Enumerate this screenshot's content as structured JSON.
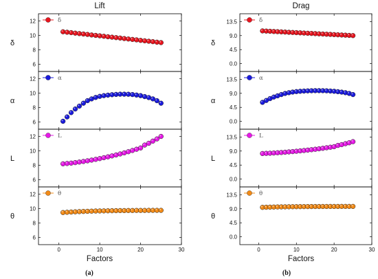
{
  "chart_data": [
    {
      "type": "scatter",
      "title": "Lift",
      "caption": "(a)",
      "xlabel": "Factors",
      "xlim": [
        -5,
        30
      ],
      "xticks": [
        "0",
        "10",
        "20",
        "30"
      ],
      "x": [
        1,
        2,
        3,
        4,
        5,
        6,
        7,
        8,
        9,
        10,
        11,
        12,
        13,
        14,
        15,
        16,
        17,
        18,
        19,
        20,
        21,
        22,
        23,
        24,
        25
      ],
      "panels": [
        {
          "ylabel": "δ",
          "legend": "δ",
          "color": "#e8141e",
          "ylim": [
            5,
            13
          ],
          "yticks": [
            6,
            8,
            10,
            12
          ],
          "values": [
            10.5,
            10.44,
            10.38,
            10.31,
            10.25,
            10.19,
            10.13,
            10.06,
            10.0,
            9.94,
            9.88,
            9.81,
            9.75,
            9.69,
            9.63,
            9.56,
            9.5,
            9.44,
            9.38,
            9.31,
            9.25,
            9.19,
            9.13,
            9.06,
            9.0
          ]
        },
        {
          "ylabel": "α",
          "legend": "α",
          "color": "#1a1adc",
          "ylim": [
            5,
            13
          ],
          "yticks": [
            6,
            8,
            10,
            12
          ],
          "values": [
            6.1,
            6.7,
            7.3,
            7.8,
            8.2,
            8.6,
            8.95,
            9.2,
            9.4,
            9.55,
            9.65,
            9.72,
            9.78,
            9.82,
            9.85,
            9.85,
            9.84,
            9.8,
            9.73,
            9.65,
            9.52,
            9.38,
            9.2,
            8.95,
            8.6
          ]
        },
        {
          "ylabel": "L",
          "legend": "L",
          "color": "#e619e6",
          "ylim": [
            5,
            13
          ],
          "yticks": [
            6,
            8,
            10,
            12
          ],
          "values": [
            8.2,
            8.25,
            8.3,
            8.37,
            8.45,
            8.53,
            8.62,
            8.72,
            8.82,
            8.93,
            9.05,
            9.17,
            9.3,
            9.43,
            9.57,
            9.72,
            9.88,
            10.05,
            10.22,
            10.4,
            10.8,
            11.05,
            11.35,
            11.65,
            12.0
          ]
        },
        {
          "ylabel": "θ",
          "legend": "θ",
          "color": "#f28a16",
          "ylim": [
            5,
            13
          ],
          "yticks": [
            6,
            8,
            10,
            12
          ],
          "values": [
            9.45,
            9.49,
            9.52,
            9.55,
            9.58,
            9.6,
            9.62,
            9.64,
            9.66,
            9.67,
            9.68,
            9.69,
            9.7,
            9.71,
            9.72,
            9.72,
            9.73,
            9.73,
            9.74,
            9.74,
            9.74,
            9.75,
            9.75,
            9.75,
            9.75
          ]
        }
      ]
    },
    {
      "type": "scatter",
      "title": "Drag",
      "caption": "(b)",
      "xlabel": "Factors",
      "xlim": [
        -5,
        30
      ],
      "xticks": [
        "0",
        "10",
        "20",
        "30"
      ],
      "x": [
        1,
        2,
        3,
        4,
        5,
        6,
        7,
        8,
        9,
        10,
        11,
        12,
        13,
        14,
        15,
        16,
        17,
        18,
        19,
        20,
        21,
        22,
        23,
        24,
        25
      ],
      "panels": [
        {
          "ylabel": "δ",
          "legend": "δ",
          "color": "#e8141e",
          "ylim": [
            -2.5,
            16
          ],
          "yticks": [
            "0.0",
            "4.5",
            "9.0",
            "13.5"
          ],
          "values": [
            10.5,
            10.44,
            10.38,
            10.31,
            10.25,
            10.19,
            10.13,
            10.06,
            10.0,
            9.94,
            9.88,
            9.81,
            9.75,
            9.69,
            9.63,
            9.56,
            9.5,
            9.44,
            9.38,
            9.31,
            9.25,
            9.19,
            9.13,
            9.06,
            9.0
          ]
        },
        {
          "ylabel": "α",
          "legend": "α",
          "color": "#1a1adc",
          "ylim": [
            -2.5,
            16
          ],
          "yticks": [
            "0.0",
            "4.5",
            "9.0",
            "13.5"
          ],
          "values": [
            6.1,
            6.7,
            7.3,
            7.8,
            8.2,
            8.6,
            8.95,
            9.2,
            9.4,
            9.55,
            9.65,
            9.72,
            9.78,
            9.82,
            9.85,
            9.85,
            9.84,
            9.8,
            9.73,
            9.65,
            9.52,
            9.38,
            9.2,
            8.95,
            8.6
          ]
        },
        {
          "ylabel": "L",
          "legend": "L",
          "color": "#e619e6",
          "ylim": [
            -2.5,
            16
          ],
          "yticks": [
            "0.0",
            "4.5",
            "9.0",
            "13.5"
          ],
          "values": [
            8.2,
            8.25,
            8.3,
            8.37,
            8.45,
            8.53,
            8.62,
            8.72,
            8.82,
            8.93,
            9.05,
            9.17,
            9.3,
            9.43,
            9.57,
            9.72,
            9.88,
            10.05,
            10.22,
            10.4,
            10.8,
            11.05,
            11.35,
            11.65,
            12.0
          ]
        },
        {
          "ylabel": "θ",
          "legend": "θ",
          "color": "#f28a16",
          "ylim": [
            -2.5,
            16
          ],
          "yticks": [
            "0.0",
            "4.5",
            "9.0",
            "13.5"
          ],
          "values": [
            9.45,
            9.49,
            9.52,
            9.55,
            9.58,
            9.6,
            9.62,
            9.64,
            9.66,
            9.67,
            9.68,
            9.69,
            9.7,
            9.71,
            9.72,
            9.72,
            9.73,
            9.73,
            9.74,
            9.74,
            9.74,
            9.75,
            9.75,
            9.75,
            9.75
          ]
        }
      ]
    }
  ]
}
